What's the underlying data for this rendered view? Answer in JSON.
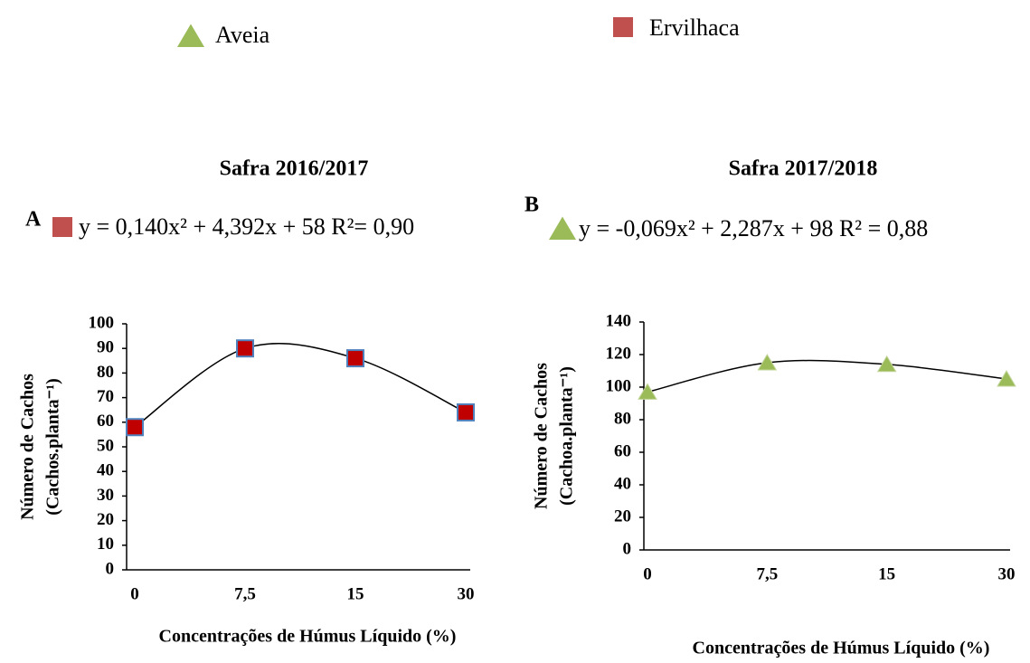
{
  "chart_data": [
    {
      "type": "scatter",
      "title": "Safra 2016/2017",
      "panel": "A",
      "equation": "y = 0,140x² + 4,392x + 58 R²= 0,90",
      "categories": [
        "0",
        "7,5",
        "15",
        "30"
      ],
      "series": [
        {
          "name": "Ervilhaca",
          "color": "#c00000",
          "values": [
            58,
            90,
            86,
            64
          ]
        }
      ],
      "ylim": [
        0,
        100
      ],
      "yticks": [
        0,
        10,
        20,
        30,
        40,
        50,
        60,
        70,
        80,
        90,
        100
      ],
      "xlabel": "Concentrações de Húmus Líquido (%)",
      "ylabel": [
        "Número de Cachos",
        "(Cachos.planta⁻¹)"
      ]
    },
    {
      "type": "scatter",
      "title": "Safra 2017/2018",
      "panel": "B",
      "equation": "y = -0,069x² + 2,287x + 98 R² = 0,88",
      "categories": [
        "0",
        "7,5",
        "15",
        "30"
      ],
      "series": [
        {
          "name": "Aveia",
          "color": "#9bbb59",
          "values": [
            97,
            115,
            114,
            105
          ]
        }
      ],
      "ylim": [
        0,
        140
      ],
      "yticks": [
        0,
        20,
        40,
        60,
        80,
        100,
        120,
        140
      ],
      "xlabel": "Concentrações de Húmus Líquido (%)",
      "ylabel": [
        "Número de Cachos",
        "(Cachoa.planta⁻¹)"
      ]
    }
  ]
}
